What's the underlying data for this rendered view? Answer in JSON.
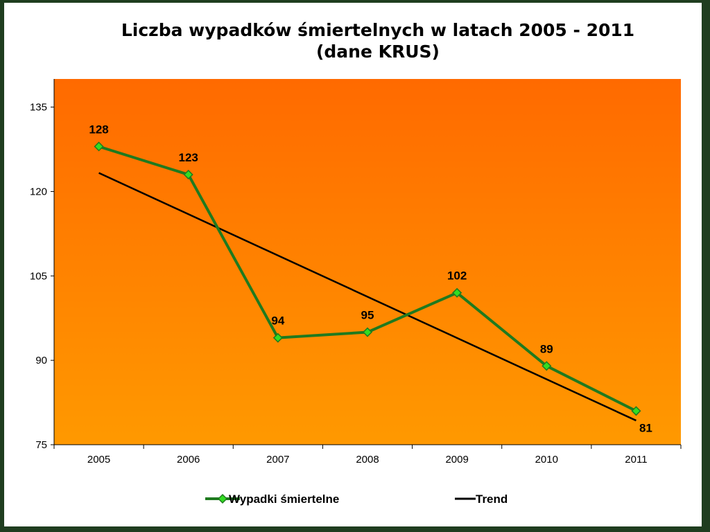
{
  "chart_data": {
    "type": "line",
    "title": "Liczba wypadków śmiertelnych w latach 2005 - 2011",
    "subtitle": "(dane KRUS)",
    "xlabel": "",
    "ylabel": "",
    "categories": [
      "2005",
      "2006",
      "2007",
      "2008",
      "2009",
      "2010",
      "2011"
    ],
    "series": [
      {
        "name": "Wypadki śmiertelne",
        "values": [
          128,
          123,
          94,
          95,
          102,
          89,
          81
        ],
        "color": "#1f7a1f",
        "marker_color": "#33dd22",
        "marker": "diamond",
        "data_labels": true
      },
      {
        "name": "Trend",
        "values": [
          123.3,
          115.9,
          108.6,
          101.3,
          93.9,
          86.6,
          79.3
        ],
        "color": "#000000",
        "type": "linear-trendline"
      }
    ],
    "ylim": [
      75,
      140
    ],
    "yticks": [
      75,
      90,
      105,
      120,
      135
    ],
    "grid": false,
    "legend_position": "bottom",
    "background_gradient": [
      "#ff6a00",
      "#ff9900"
    ]
  }
}
